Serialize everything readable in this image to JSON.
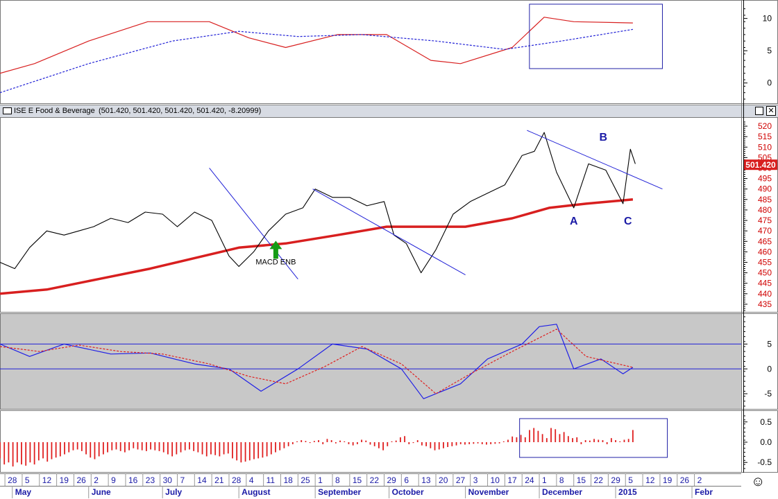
{
  "header": {
    "title": "ISE E Food & Beverage",
    "values": "(501.420, 501.420, 501.420, 501.420, -8.20999)"
  },
  "colors": {
    "price": "#000000",
    "moving_average": "#d81f1f",
    "trendline": "#1f1fd6",
    "macd": "#1f1fe6",
    "signal": "#e01f1f",
    "histogram": "#e01f1f",
    "macd_panel_bg": "#c8c8c8",
    "box": "#1f1fa6",
    "arrow": "#159b15"
  },
  "chart_data": [
    {
      "type": "line",
      "panel": "top-indicator",
      "ylim": [
        -2.5,
        12
      ],
      "yticks": [
        "10",
        "5",
        "0"
      ],
      "series": [
        {
          "style": "solid",
          "color": "#d81f1f",
          "x": [
            "2014-04-26",
            "2014-05-10",
            "2014-06-01",
            "2014-06-25",
            "2014-07-20",
            "2014-08-05",
            "2014-08-20",
            "2014-09-10",
            "2014-09-30",
            "2014-10-18",
            "2014-10-30",
            "2014-11-20",
            "2014-12-03",
            "2014-12-15",
            "2015-01-08"
          ],
          "y": [
            1.5,
            3,
            6.5,
            9.5,
            9.5,
            7,
            5.5,
            7.5,
            7.5,
            3.5,
            3,
            5.5,
            10.2,
            9.5,
            9.3
          ]
        },
        {
          "style": "dashed",
          "color": "#1f1fd6",
          "x": [
            "2014-04-26",
            "2014-06-01",
            "2014-07-05",
            "2014-08-01",
            "2014-08-25",
            "2014-09-20",
            "2014-10-20",
            "2014-11-17",
            "2014-12-10",
            "2015-01-08"
          ],
          "y": [
            -1.5,
            3,
            6.5,
            8,
            7.2,
            7.5,
            6.5,
            5.2,
            6.5,
            8.3
          ]
        }
      ]
    },
    {
      "type": "line",
      "panel": "price",
      "title": "ISE E Food & Beverage",
      "ylim": [
        432,
        522
      ],
      "yticks": [
        "520",
        "515",
        "510",
        "505",
        "500",
        "495",
        "490",
        "485",
        "480",
        "475",
        "470",
        "465",
        "460",
        "455",
        "450",
        "445",
        "440",
        "435"
      ],
      "last_value_label": "501.420",
      "series": [
        {
          "style": "solid",
          "color": "#000000",
          "x": [
            "2014-04-26",
            "2014-05-02",
            "2014-05-08",
            "2014-05-15",
            "2014-05-22",
            "2014-05-28",
            "2014-06-03",
            "2014-06-10",
            "2014-06-17",
            "2014-06-24",
            "2014-07-01",
            "2014-07-07",
            "2014-07-14",
            "2014-07-21",
            "2014-07-28",
            "2014-08-01",
            "2014-08-07",
            "2014-08-13",
            "2014-08-20",
            "2014-08-27",
            "2014-09-01",
            "2014-09-08",
            "2014-09-15",
            "2014-09-22",
            "2014-09-29",
            "2014-10-03",
            "2014-10-08",
            "2014-10-14",
            "2014-10-20",
            "2014-10-27",
            "2014-11-03",
            "2014-11-10",
            "2014-11-17",
            "2014-11-24",
            "2014-11-29",
            "2014-12-03",
            "2014-12-08",
            "2014-12-15",
            "2014-12-21",
            "2014-12-28",
            "2015-01-04",
            "2015-01-07",
            "2015-01-09"
          ],
          "y": [
            455,
            452,
            462,
            470,
            468,
            470,
            472,
            476,
            474,
            479,
            478,
            472,
            479,
            475,
            458,
            453,
            460,
            470,
            478,
            481,
            490,
            486,
            486,
            482,
            484,
            468,
            464,
            450,
            461,
            478,
            484,
            488,
            492,
            506,
            508,
            517,
            498,
            481,
            502,
            499,
            483,
            509,
            502
          ]
        },
        {
          "style": "solid",
          "color": "#d81f1f",
          "x": [
            "2014-04-26",
            "2014-05-15",
            "2014-06-05",
            "2014-06-26",
            "2014-07-14",
            "2014-08-01",
            "2014-08-20",
            "2014-09-10",
            "2014-09-30",
            "2014-10-15",
            "2014-11-01",
            "2014-11-20",
            "2014-12-05",
            "2014-12-20",
            "2015-01-08"
          ],
          "y": [
            440,
            442,
            447,
            452,
            457,
            462,
            464,
            468,
            472,
            472,
            472,
            476,
            481,
            483,
            485
          ]
        }
      ],
      "annotations": [
        "A",
        "B",
        "C",
        "MACD ENB"
      ]
    },
    {
      "type": "line",
      "panel": "macd",
      "ylim": [
        -7.5,
        10.5
      ],
      "yticks": [
        "5",
        "0",
        "-5"
      ],
      "reference_lines": [
        5,
        0
      ],
      "series": [
        {
          "style": "solid",
          "color": "#1f1fe6",
          "x": [
            "2014-04-26",
            "2014-05-08",
            "2014-05-22",
            "2014-06-10",
            "2014-06-26",
            "2014-07-14",
            "2014-07-28",
            "2014-08-10",
            "2014-08-25",
            "2014-09-08",
            "2014-09-22",
            "2014-10-06",
            "2014-10-15",
            "2014-10-30",
            "2014-11-10",
            "2014-11-24",
            "2014-12-01",
            "2014-12-08",
            "2014-12-15",
            "2014-12-26",
            "2015-01-04",
            "2015-01-08"
          ],
          "y": [
            5,
            2.5,
            5,
            3,
            3.2,
            1,
            0,
            -4.5,
            0,
            5,
            4,
            0,
            -6,
            -3,
            2,
            5,
            8.5,
            9,
            0,
            2,
            -1,
            0.3
          ]
        },
        {
          "style": "dashed",
          "color": "#e01f1f",
          "x": [
            "2014-04-26",
            "2014-05-12",
            "2014-05-28",
            "2014-06-14",
            "2014-07-01",
            "2014-07-20",
            "2014-08-05",
            "2014-08-20",
            "2014-09-05",
            "2014-09-20",
            "2014-10-06",
            "2014-10-20",
            "2014-11-03",
            "2014-11-20",
            "2014-12-08",
            "2014-12-20",
            "2015-01-08"
          ],
          "y": [
            4.5,
            3.5,
            4.8,
            3.5,
            3,
            1,
            -1.5,
            -3,
            0.5,
            4.5,
            1,
            -5,
            -1,
            3.5,
            8,
            2.5,
            0.3
          ]
        }
      ]
    },
    {
      "type": "bar",
      "panel": "histogram",
      "ylim": [
        -0.65,
        0.65
      ],
      "yticks": [
        "0.5",
        "0.0",
        "-0.5"
      ],
      "x_range": [
        "2014-04-26",
        "2015-01-08"
      ],
      "values": [
        -0.4,
        -0.55,
        -0.5,
        -0.6,
        -0.5,
        -0.55,
        -0.58,
        -0.5,
        -0.55,
        -0.45,
        -0.4,
        -0.48,
        -0.42,
        -0.38,
        -0.35,
        -0.3,
        -0.25,
        -0.2,
        -0.18,
        -0.22,
        -0.3,
        -0.38,
        -0.42,
        -0.35,
        -0.3,
        -0.25,
        -0.2,
        -0.18,
        -0.22,
        -0.25,
        -0.2,
        -0.15,
        -0.18,
        -0.2,
        -0.22,
        -0.18,
        -0.2,
        -0.22,
        -0.25,
        -0.3,
        -0.35,
        -0.3,
        -0.25,
        -0.2,
        -0.18,
        -0.22,
        -0.25,
        -0.3,
        -0.35,
        -0.3,
        -0.32,
        -0.35,
        -0.3,
        -0.28,
        -0.4,
        -0.45,
        -0.5,
        -0.48,
        -0.45,
        -0.42,
        -0.4,
        -0.38,
        -0.35,
        -0.3,
        -0.25,
        -0.2,
        -0.15,
        -0.1,
        -0.05,
        0.02,
        0.05,
        0.03,
        -0.02,
        0.03,
        0.05,
        -0.05,
        0.08,
        0.05,
        -0.03,
        0.04,
        0.02,
        -0.05,
        -0.08,
        -0.05,
        0.06,
        0.04,
        -0.06,
        -0.1,
        -0.15,
        -0.2,
        -0.1,
        0.02,
        0.04,
        0.12,
        0.15,
        -0.05,
        -0.02,
        0.05,
        -0.08,
        -0.1,
        -0.15,
        -0.2,
        -0.18,
        -0.15,
        -0.12,
        -0.1,
        -0.08,
        -0.05,
        -0.06,
        -0.05,
        -0.04,
        -0.03,
        -0.05,
        -0.06,
        -0.05,
        -0.04,
        -0.03,
        0.02,
        0.06,
        0.14,
        0.12,
        0.18,
        0.12,
        0.3,
        0.35,
        0.28,
        0.2,
        0.1,
        0.35,
        0.32,
        0.2,
        0.25,
        0.15,
        0.1,
        0.12,
        -0.05,
        0.05,
        0.04,
        0.08,
        0.06,
        0.05,
        -0.05,
        0.1,
        0.05,
        0.02,
        0.06,
        0.08,
        0.3
      ]
    }
  ],
  "x_axis": {
    "range": [
      "2014-04-26",
      "2015-02-21"
    ],
    "days": [
      {
        "d": "28",
        "x": "2014-04-28"
      },
      {
        "d": "5",
        "x": "2014-05-05"
      },
      {
        "d": "12",
        "x": "2014-05-12"
      },
      {
        "d": "19",
        "x": "2014-05-19"
      },
      {
        "d": "26",
        "x": "2014-05-26"
      },
      {
        "d": "2",
        "x": "2014-06-02"
      },
      {
        "d": "9",
        "x": "2014-06-09"
      },
      {
        "d": "16",
        "x": "2014-06-16"
      },
      {
        "d": "23",
        "x": "2014-06-23"
      },
      {
        "d": "30",
        "x": "2014-06-30"
      },
      {
        "d": "7",
        "x": "2014-07-07"
      },
      {
        "d": "14",
        "x": "2014-07-14"
      },
      {
        "d": "21",
        "x": "2014-07-21"
      },
      {
        "d": "28",
        "x": "2014-07-28"
      },
      {
        "d": "4",
        "x": "2014-08-04"
      },
      {
        "d": "11",
        "x": "2014-08-11"
      },
      {
        "d": "18",
        "x": "2014-08-18"
      },
      {
        "d": "25",
        "x": "2014-08-25"
      },
      {
        "d": "1",
        "x": "2014-09-01"
      },
      {
        "d": "8",
        "x": "2014-09-08"
      },
      {
        "d": "15",
        "x": "2014-09-15"
      },
      {
        "d": "22",
        "x": "2014-09-22"
      },
      {
        "d": "29",
        "x": "2014-09-29"
      },
      {
        "d": "6",
        "x": "2014-10-06"
      },
      {
        "d": "13",
        "x": "2014-10-13"
      },
      {
        "d": "20",
        "x": "2014-10-20"
      },
      {
        "d": "27",
        "x": "2014-10-27"
      },
      {
        "d": "3",
        "x": "2014-11-03"
      },
      {
        "d": "10",
        "x": "2014-11-10"
      },
      {
        "d": "17",
        "x": "2014-11-17"
      },
      {
        "d": "24",
        "x": "2014-11-24"
      },
      {
        "d": "1",
        "x": "2014-12-01"
      },
      {
        "d": "8",
        "x": "2014-12-08"
      },
      {
        "d": "15",
        "x": "2014-12-15"
      },
      {
        "d": "22",
        "x": "2014-12-22"
      },
      {
        "d": "29",
        "x": "2014-12-29"
      },
      {
        "d": "5",
        "x": "2015-01-05"
      },
      {
        "d": "12",
        "x": "2015-01-12"
      },
      {
        "d": "19",
        "x": "2015-01-19"
      },
      {
        "d": "26",
        "x": "2015-01-26"
      },
      {
        "d": "2",
        "x": "2015-02-02"
      }
    ],
    "months": [
      {
        "label": "May",
        "x": "2014-05-01"
      },
      {
        "label": "June",
        "x": "2014-06-01"
      },
      {
        "label": "July",
        "x": "2014-07-01"
      },
      {
        "label": "August",
        "x": "2014-08-01"
      },
      {
        "label": "September",
        "x": "2014-09-01"
      },
      {
        "label": "October",
        "x": "2014-10-01"
      },
      {
        "label": "November",
        "x": "2014-11-01"
      },
      {
        "label": "December",
        "x": "2014-12-01"
      },
      {
        "label": "2015",
        "x": "2015-01-01"
      },
      {
        "label": "Febr",
        "x": "2015-02-01"
      }
    ]
  },
  "trendlines": [
    {
      "x": [
        "2014-07-20",
        "2014-08-25"
      ],
      "y": [
        500,
        447
      ]
    },
    {
      "x": [
        "2014-08-31",
        "2014-11-01"
      ],
      "y": [
        490,
        449
      ]
    },
    {
      "x": [
        "2014-11-26",
        "2015-01-20"
      ],
      "y": [
        518,
        490
      ]
    }
  ],
  "labels": {
    "A": {
      "x": "2014-12-15",
      "y": 473
    },
    "B": {
      "x": "2014-12-27",
      "y": 513
    },
    "C": {
      "x": "2015-01-06",
      "y": 473
    },
    "MACD ENB": {
      "x": "2014-08-16",
      "y": 454
    }
  },
  "signal_arrow_x": "2014-08-16",
  "highlight_boxes": [
    {
      "panel": "top-indicator",
      "x": [
        "2014-11-27",
        "2015-01-20"
      ]
    },
    {
      "panel": "histogram",
      "x": [
        "2014-11-23",
        "2015-01-22"
      ]
    }
  ],
  "smiley": "☺"
}
